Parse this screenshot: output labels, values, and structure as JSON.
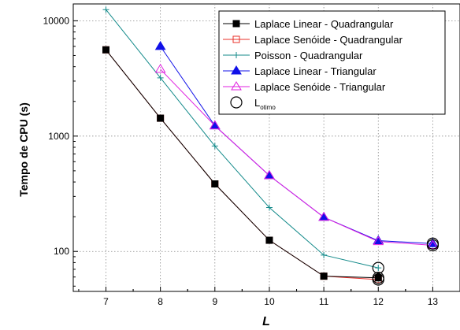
{
  "chart_data": {
    "type": "line",
    "xlabel": "L",
    "ylabel": "Tempo de CPU (s)",
    "xlim": [
      6.4,
      13.5
    ],
    "ylim": [
      45,
      14000
    ],
    "y_scale": "log",
    "grid": true,
    "legend_position": "top-right",
    "x_ticks": [
      7,
      8,
      9,
      10,
      11,
      12,
      13
    ],
    "x_tick_labels": [
      "7",
      "8",
      "9",
      "10",
      "11",
      "12",
      "13"
    ],
    "y_ticks": [
      100,
      1000,
      10000
    ],
    "y_tick_labels": [
      "100",
      "1000",
      "10000"
    ],
    "series": [
      {
        "name": "Laplace Linear - Quadrangular",
        "marker": "filled-square",
        "color": "#000000",
        "x": [
          7,
          8,
          9,
          10,
          11,
          12
        ],
        "y": [
          5600,
          1430,
          385,
          125,
          61,
          59
        ]
      },
      {
        "name": "Laplace Senóide - Quadrangular",
        "marker": "open-square",
        "color": "#e8302a",
        "x": [
          7,
          8,
          9,
          10,
          11,
          12
        ],
        "y": [
          5600,
          1430,
          385,
          125,
          61,
          57
        ]
      },
      {
        "name": "Poisson - Quadrangular",
        "marker": "plus",
        "color": "#138a8a",
        "x": [
          7,
          8,
          9,
          10,
          11,
          12
        ],
        "y": [
          12500,
          3200,
          820,
          240,
          93,
          72
        ]
      },
      {
        "name": "Laplace Linear - Triangular",
        "marker": "filled-triangle",
        "color": "#1010e8",
        "x": [
          8,
          9,
          10,
          11,
          12,
          13
        ],
        "y": [
          6000,
          1230,
          455,
          198,
          124,
          117
        ]
      },
      {
        "name": "Laplace Senóide - Triangular",
        "marker": "open-triangle",
        "color": "#e020e0",
        "x": [
          8,
          9,
          10,
          11,
          12,
          13
        ],
        "y": [
          3800,
          1230,
          455,
          198,
          122,
          113
        ]
      },
      {
        "name": "L",
        "name_subscript": "otimo",
        "marker": "open-circle",
        "color": "#000000",
        "x": [
          12,
          12,
          12,
          13,
          13
        ],
        "y": [
          72,
          59,
          57,
          117,
          113
        ],
        "connect": false
      }
    ]
  }
}
